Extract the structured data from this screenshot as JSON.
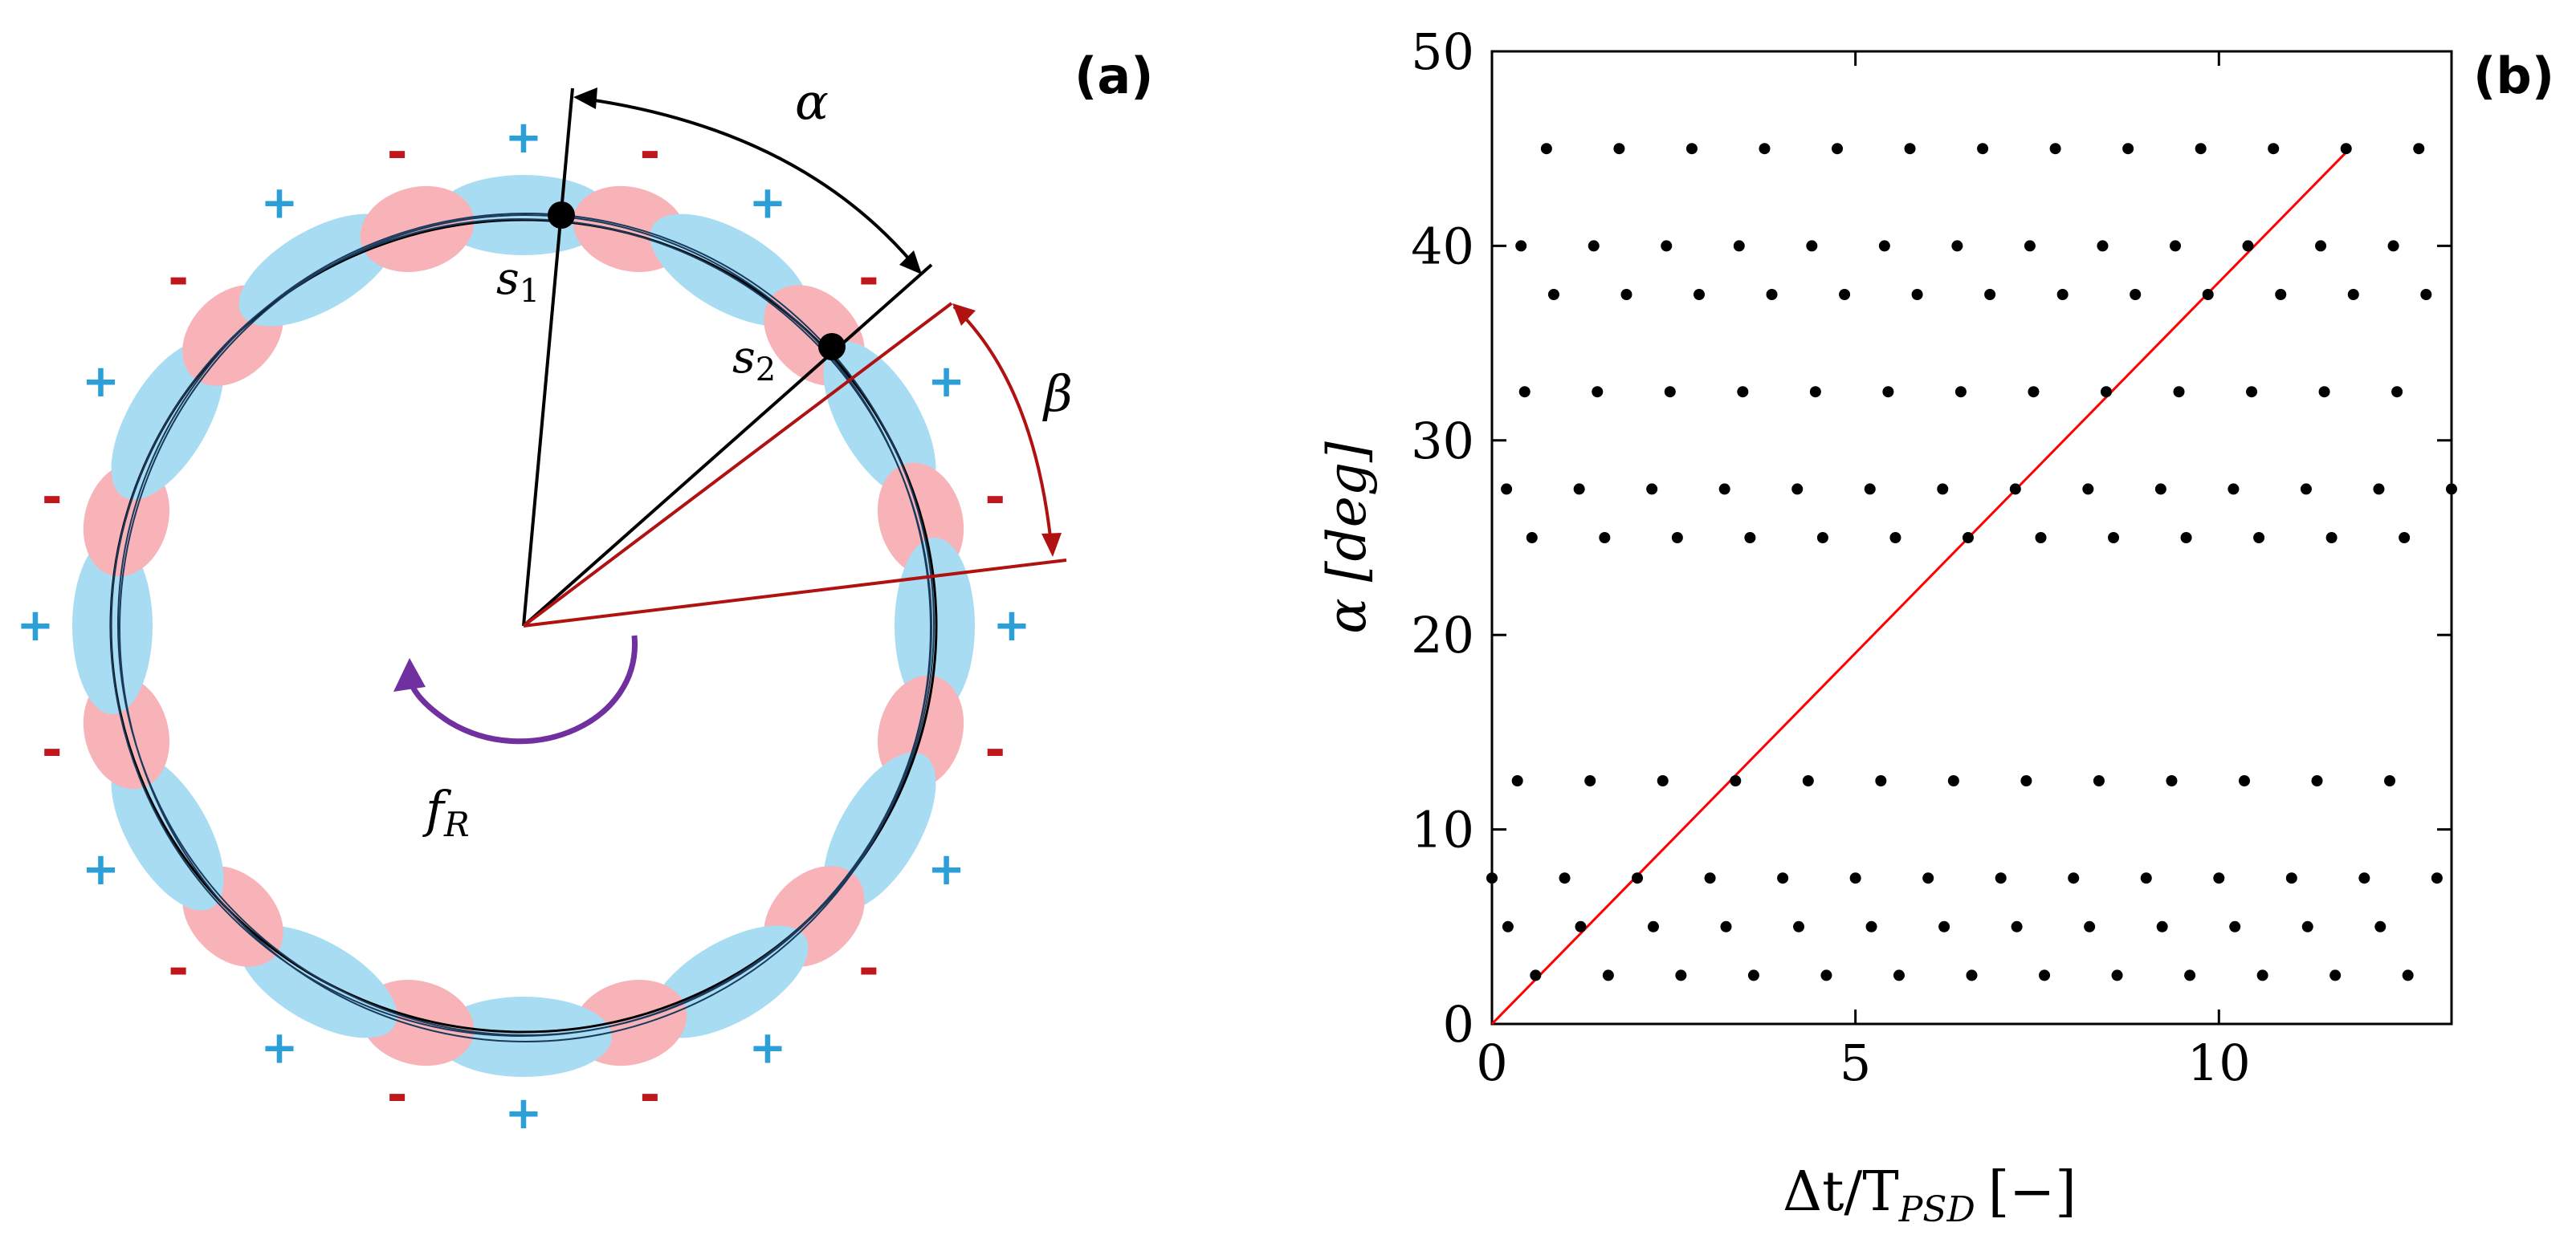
{
  "panel_a": {
    "label": "(a)",
    "alpha_symbol": "α",
    "beta_symbol": "β",
    "s1_base": "s",
    "s1_sub": "1",
    "s2_base": "s",
    "s2_sub": "2",
    "fr_base": "f",
    "fr_sub": "R",
    "signs": [
      {
        "text": "+",
        "kind": "plus"
      },
      {
        "text": "-",
        "kind": "minus"
      },
      {
        "text": "+",
        "kind": "plus"
      },
      {
        "text": "-",
        "kind": "minus"
      },
      {
        "text": "+",
        "kind": "plus"
      },
      {
        "text": "-",
        "kind": "minus"
      },
      {
        "text": "+",
        "kind": "plus"
      },
      {
        "text": "-",
        "kind": "minus"
      },
      {
        "text": "+",
        "kind": "plus"
      },
      {
        "text": "-",
        "kind": "minus"
      },
      {
        "text": "+",
        "kind": "plus"
      },
      {
        "text": "-",
        "kind": "minus"
      },
      {
        "text": "+",
        "kind": "plus"
      },
      {
        "text": "-",
        "kind": "minus"
      },
      {
        "text": "+",
        "kind": "plus"
      },
      {
        "text": "-",
        "kind": "minus"
      },
      {
        "text": "+",
        "kind": "plus"
      },
      {
        "text": "-",
        "kind": "minus"
      },
      {
        "text": "+",
        "kind": "plus"
      },
      {
        "text": "-",
        "kind": "minus"
      },
      {
        "text": "+",
        "kind": "plus"
      },
      {
        "text": "-",
        "kind": "minus"
      },
      {
        "text": "+",
        "kind": "plus"
      },
      {
        "text": "-",
        "kind": "minus"
      }
    ],
    "colors": {
      "plus": "#2d9fd8",
      "minus": "#c0171c",
      "blue_lobe": "#a8dcf3",
      "red_lobe": "#f7b3b8",
      "red_line": "#b01111",
      "purple_arrow": "#7030a0"
    }
  },
  "panel_b": {
    "label": "(b)",
    "chart_data": {
      "type": "scatter",
      "xlabel_main": "Δt/T",
      "xlabel_sub": "PSD",
      "xlabel_unit": "[−]",
      "ylabel_main": "α",
      "ylabel_unit": "[deg]",
      "xlim": [
        0,
        13.2
      ],
      "ylim": [
        0,
        50
      ],
      "xticks": [
        "0",
        "5",
        "10"
      ],
      "yticks": [
        "0",
        "10",
        "20",
        "30",
        "40",
        "50"
      ],
      "grid": false,
      "series": [
        {
          "alpha": 45,
          "start": 0.75,
          "step": 1.0
        },
        {
          "alpha": 40,
          "start": 0.4,
          "step": 1.0
        },
        {
          "alpha": 37.5,
          "start": 0.85,
          "step": 1.0
        },
        {
          "alpha": 32.5,
          "start": 0.45,
          "step": 1.0
        },
        {
          "alpha": 27.5,
          "start": 0.2,
          "step": 1.0
        },
        {
          "alpha": 25,
          "start": 0.55,
          "step": 1.0
        },
        {
          "alpha": 12.5,
          "start": 0.35,
          "step": 1.0
        },
        {
          "alpha": 7.5,
          "start": 0.0,
          "step": 1.0
        },
        {
          "alpha": 5,
          "start": 0.22,
          "step": 1.0
        },
        {
          "alpha": 2.5,
          "start": 0.6,
          "step": 1.0
        }
      ],
      "reference_line": {
        "x": [
          0,
          11.8
        ],
        "y": [
          0,
          45
        ],
        "color": "#ff0000"
      },
      "point_color": "#000000"
    }
  }
}
